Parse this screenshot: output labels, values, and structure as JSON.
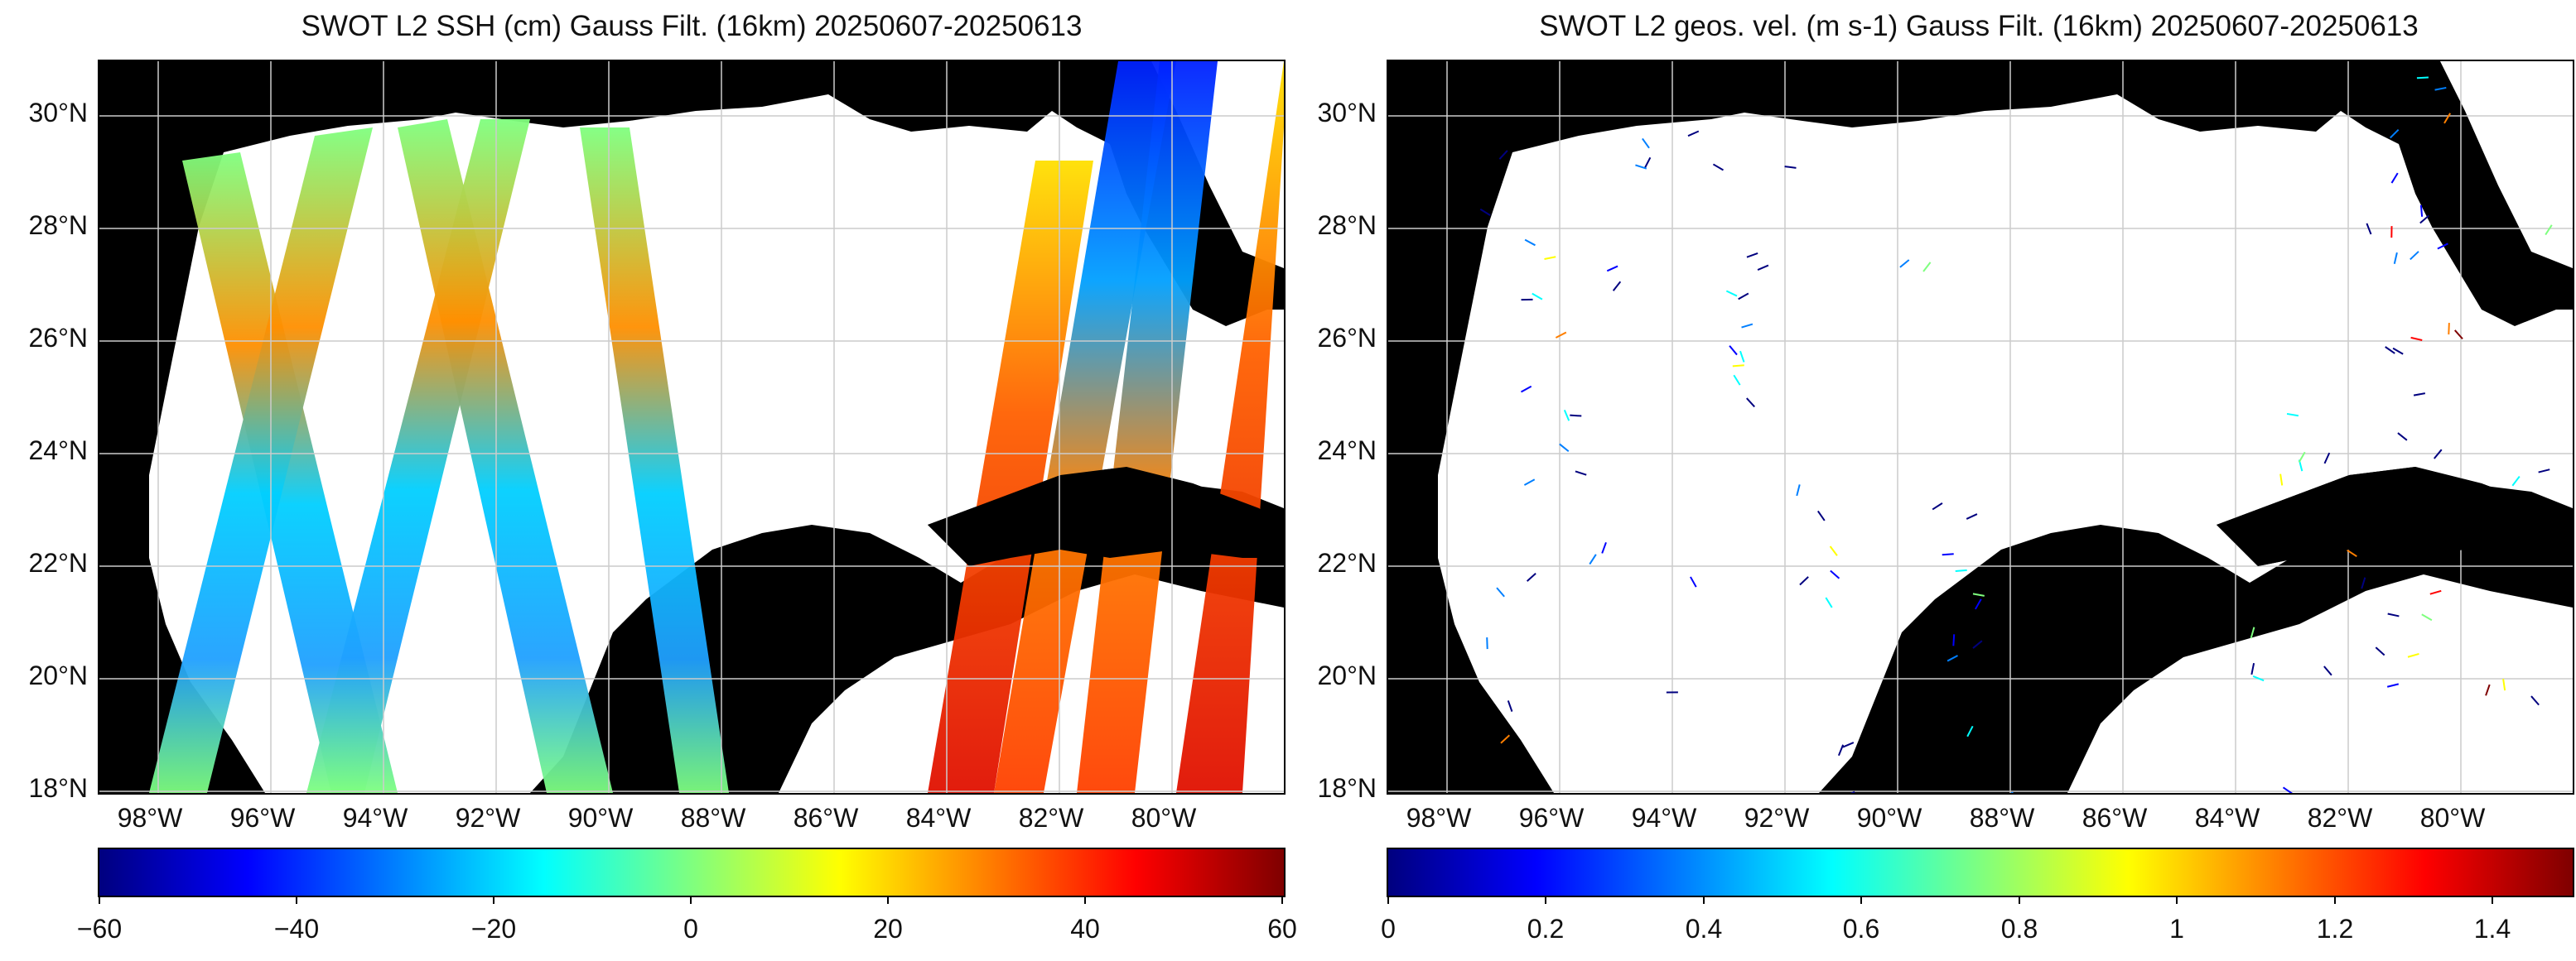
{
  "panels": [
    {
      "id": "ssh",
      "title": "SWOT L2 SSH (cm) Gauss Filt. (16km) 20250607-20250613",
      "lat_ticks": [
        "30°N",
        "28°N",
        "26°N",
        "24°N",
        "22°N",
        "20°N",
        "18°N"
      ],
      "lon_ticks": [
        "98°W",
        "96°W",
        "94°W",
        "92°W",
        "90°W",
        "88°W",
        "86°W",
        "84°W",
        "82°W",
        "80°W"
      ],
      "colorbar": {
        "colormap": "jet",
        "range": [
          -60,
          60
        ],
        "ticks": [
          "−60",
          "−40",
          "−20",
          "0",
          "20",
          "40",
          "60"
        ]
      }
    },
    {
      "id": "vel",
      "title": "SWOT L2 geos. vel. (m s-1) Gauss Filt. (16km) 20250607-20250613",
      "lat_ticks": [
        "30°N",
        "28°N",
        "26°N",
        "24°N",
        "22°N",
        "20°N",
        "18°N"
      ],
      "lon_ticks": [
        "98°W",
        "96°W",
        "94°W",
        "92°W",
        "90°W",
        "88°W",
        "86°W",
        "84°W",
        "82°W",
        "80°W"
      ],
      "colorbar": {
        "colormap": "jet",
        "range": [
          0,
          1.5
        ],
        "ticks": [
          "0",
          "0.2",
          "0.4",
          "0.6",
          "0.8",
          "1",
          "1.2",
          "1.4"
        ]
      }
    }
  ],
  "map_extent": {
    "lon": [
      -99.5,
      -78.5
    ],
    "lat": [
      18,
      31
    ]
  },
  "colors": {
    "land": "#000000",
    "ocean": "#ffffff",
    "grid": "#cccccc"
  }
}
